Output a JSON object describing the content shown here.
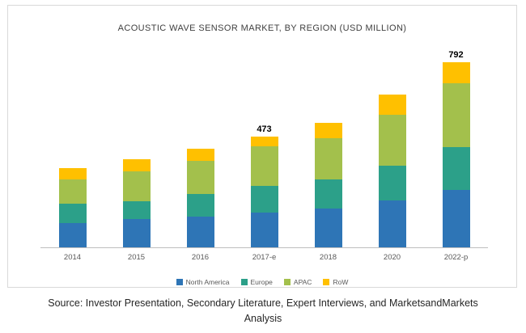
{
  "chart_data": {
    "type": "stacked-bar",
    "title": "ACOUSTIC WAVE SENSOR MARKET, BY REGION (USD MILLION)",
    "categories": [
      "2014",
      "2015",
      "2016",
      "2017-e",
      "2018",
      "2020",
      "2022-p"
    ],
    "series": [
      {
        "name": "North America",
        "color": "#2E75B6",
        "values": [
          105,
          120,
          133,
          150,
          165,
          200,
          245
        ]
      },
      {
        "name": "Europe",
        "color": "#2CA089",
        "values": [
          80,
          78,
          94,
          112,
          126,
          150,
          182
        ]
      },
      {
        "name": "APAC",
        "color": "#A3C04C",
        "values": [
          105,
          127,
          144,
          168,
          175,
          217,
          273
        ]
      },
      {
        "name": "RoW",
        "color": "#FFC000",
        "values": [
          48,
          52,
          52,
          43,
          66,
          84,
          92
        ]
      }
    ],
    "bar_labels": [
      "",
      "",
      "",
      "473",
      "",
      "",
      "792"
    ],
    "totals": [
      338,
      377,
      423,
      473,
      532,
      651,
      792
    ],
    "xlabel": "",
    "ylabel": "",
    "ylim": [
      0,
      880
    ],
    "grid": false,
    "legend_position": "bottom"
  },
  "source_note": "Source: Investor Presentation, Secondary Literature, Expert Interviews, and MarketsandMarkets\nAnalysis"
}
